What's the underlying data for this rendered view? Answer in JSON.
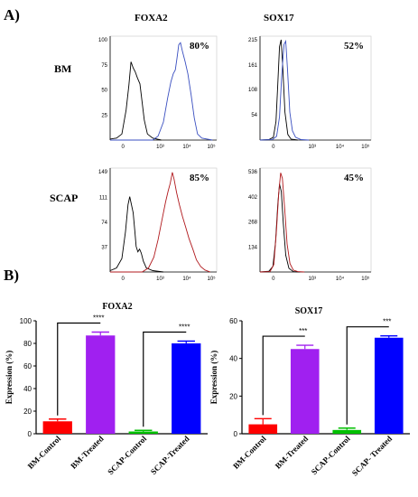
{
  "panel_a_label": "A)",
  "panel_b_label": "B)",
  "chart_data": [
    {
      "type": "histogram",
      "panel": "A",
      "row": "BM",
      "title": "FOXA2",
      "percentage": "80%",
      "x_tick_labels": [
        "0",
        "10³",
        "10⁴",
        "10⁵"
      ],
      "y_tick_labels": [
        "100",
        "75",
        "50",
        "25",
        "0"
      ],
      "series": [
        {
          "color": "#000000",
          "points": [
            [
              0,
              1
            ],
            [
              30,
              2
            ],
            [
              55,
              6
            ],
            [
              75,
              30
            ],
            [
              88,
              55
            ],
            [
              98,
              78
            ],
            [
              108,
              72
            ],
            [
              118,
              68
            ],
            [
              128,
              62
            ],
            [
              140,
              56
            ],
            [
              150,
              38
            ],
            [
              160,
              20
            ],
            [
              175,
              6
            ],
            [
              200,
              2
            ],
            [
              240,
              0
            ]
          ]
        },
        {
          "color": "#3a4fc0",
          "points": [
            [
              0,
              0
            ],
            [
              200,
              0
            ],
            [
              225,
              4
            ],
            [
              250,
              18
            ],
            [
              270,
              42
            ],
            [
              285,
              58
            ],
            [
              296,
              66
            ],
            [
              306,
              70
            ],
            [
              314,
              82
            ],
            [
              322,
              95
            ],
            [
              330,
              97
            ],
            [
              340,
              88
            ],
            [
              352,
              78
            ],
            [
              365,
              66
            ],
            [
              380,
              45
            ],
            [
              395,
              22
            ],
            [
              410,
              6
            ],
            [
              430,
              2
            ],
            [
              480,
              0
            ]
          ]
        }
      ]
    },
    {
      "type": "histogram",
      "panel": "A",
      "row": "BM",
      "title": "SOX17",
      "percentage": "52%",
      "x_tick_labels": [
        "0",
        "10³",
        "10⁴",
        "10⁵"
      ],
      "y_tick_labels": [
        "215",
        "161",
        "108",
        "54",
        "0"
      ],
      "series": [
        {
          "color": "#000000",
          "points": [
            [
              0,
              0
            ],
            [
              40,
              1
            ],
            [
              60,
              6
            ],
            [
              72,
              40
            ],
            [
              80,
              120
            ],
            [
              88,
              200
            ],
            [
              95,
              215
            ],
            [
              102,
              160
            ],
            [
              112,
              60
            ],
            [
              125,
              12
            ],
            [
              140,
              2
            ],
            [
              170,
              0
            ]
          ]
        },
        {
          "color": "#3a4fc0",
          "points": [
            [
              0,
              0
            ],
            [
              55,
              1
            ],
            [
              75,
              8
            ],
            [
              88,
              50
            ],
            [
              98,
              140
            ],
            [
              108,
              205
            ],
            [
              116,
              212
            ],
            [
              124,
              150
            ],
            [
              134,
              60
            ],
            [
              146,
              20
            ],
            [
              160,
              6
            ],
            [
              185,
              1
            ],
            [
              220,
              0
            ]
          ]
        }
      ]
    },
    {
      "type": "histogram",
      "panel": "A",
      "row": "SCAP",
      "title": "FOXA2",
      "percentage": "85%",
      "x_tick_labels": [
        "0",
        "10³",
        "10⁴",
        "10⁵"
      ],
      "y_tick_labels": [
        "149",
        "111",
        "74",
        "37",
        "0"
      ],
      "series": [
        {
          "color": "#000000",
          "points": [
            [
              0,
              2
            ],
            [
              30,
              6
            ],
            [
              55,
              20
            ],
            [
              72,
              60
            ],
            [
              84,
              100
            ],
            [
              92,
              112
            ],
            [
              100,
              100
            ],
            [
              108,
              88
            ],
            [
              116,
              60
            ],
            [
              122,
              38
            ],
            [
              130,
              30
            ],
            [
              138,
              34
            ],
            [
              146,
              28
            ],
            [
              156,
              16
            ],
            [
              170,
              6
            ],
            [
              200,
              2
            ],
            [
              250,
              0
            ]
          ]
        },
        {
          "color": "#b0181c",
          "points": [
            [
              0,
              0
            ],
            [
              150,
              0
            ],
            [
              180,
              6
            ],
            [
              205,
              22
            ],
            [
              225,
              48
            ],
            [
              245,
              80
            ],
            [
              260,
              104
            ],
            [
              272,
              120
            ],
            [
              282,
              132
            ],
            [
              292,
              148
            ],
            [
              300,
              138
            ],
            [
              312,
              118
            ],
            [
              325,
              100
            ],
            [
              340,
              82
            ],
            [
              355,
              66
            ],
            [
              370,
              50
            ],
            [
              388,
              34
            ],
            [
              405,
              18
            ],
            [
              425,
              8
            ],
            [
              445,
              3
            ],
            [
              470,
              0
            ]
          ]
        }
      ]
    },
    {
      "type": "histogram",
      "panel": "A",
      "row": "SCAP",
      "title": "SOX17",
      "percentage": "45%",
      "x_tick_labels": [
        "0",
        "10³",
        "10⁴",
        "10⁵"
      ],
      "y_tick_labels": [
        "536",
        "402",
        "268",
        "134",
        "0"
      ],
      "series": [
        {
          "color": "#000000",
          "points": [
            [
              0,
              0
            ],
            [
              40,
              4
            ],
            [
              58,
              30
            ],
            [
              70,
              160
            ],
            [
              80,
              360
            ],
            [
              88,
              470
            ],
            [
              96,
              430
            ],
            [
              105,
              260
            ],
            [
              116,
              90
            ],
            [
              130,
              20
            ],
            [
              150,
              2
            ],
            [
              180,
              0
            ]
          ]
        },
        {
          "color": "#b0181c",
          "points": [
            [
              0,
              0
            ],
            [
              45,
              2
            ],
            [
              62,
              40
            ],
            [
              74,
              220
            ],
            [
              84,
              420
            ],
            [
              93,
              530
            ],
            [
              101,
              500
            ],
            [
              111,
              340
            ],
            [
              122,
              150
            ],
            [
              135,
              45
            ],
            [
              150,
              10
            ],
            [
              170,
              2
            ],
            [
              200,
              0
            ]
          ]
        }
      ]
    },
    {
      "type": "bar",
      "panel": "B",
      "title": "FOXA2",
      "ylabel": "Expression (%)",
      "ylim": [
        0,
        100
      ],
      "y_ticks": [
        0,
        20,
        40,
        60,
        80,
        100
      ],
      "categories": [
        "BM-Control",
        "BM-Treated",
        "SCAP-Control",
        "SCAP-Treated"
      ],
      "values": [
        11,
        87,
        2,
        80
      ],
      "errors": [
        2,
        3,
        1,
        2
      ],
      "colors": [
        "#ff0000",
        "#a020f0",
        "#00c000",
        "#0000ff"
      ],
      "significance": [
        {
          "from": 0,
          "to": 1,
          "label": "****"
        },
        {
          "from": 2,
          "to": 3,
          "label": "****"
        }
      ]
    },
    {
      "type": "bar",
      "panel": "B",
      "title": "SOX17",
      "ylabel": "Expression (%)",
      "ylim": [
        0,
        60
      ],
      "y_ticks": [
        0,
        20,
        40,
        60
      ],
      "categories": [
        "BM-Control",
        "BM-Treated",
        "SCAP-Control",
        "SCAP- Treated"
      ],
      "values": [
        5,
        45,
        2,
        51
      ],
      "errors": [
        3,
        2,
        1,
        1
      ],
      "colors": [
        "#ff0000",
        "#a020f0",
        "#00c000",
        "#0000ff"
      ],
      "significance": [
        {
          "from": 0,
          "to": 1,
          "label": "***"
        },
        {
          "from": 2,
          "to": 3,
          "label": "***"
        }
      ]
    }
  ]
}
